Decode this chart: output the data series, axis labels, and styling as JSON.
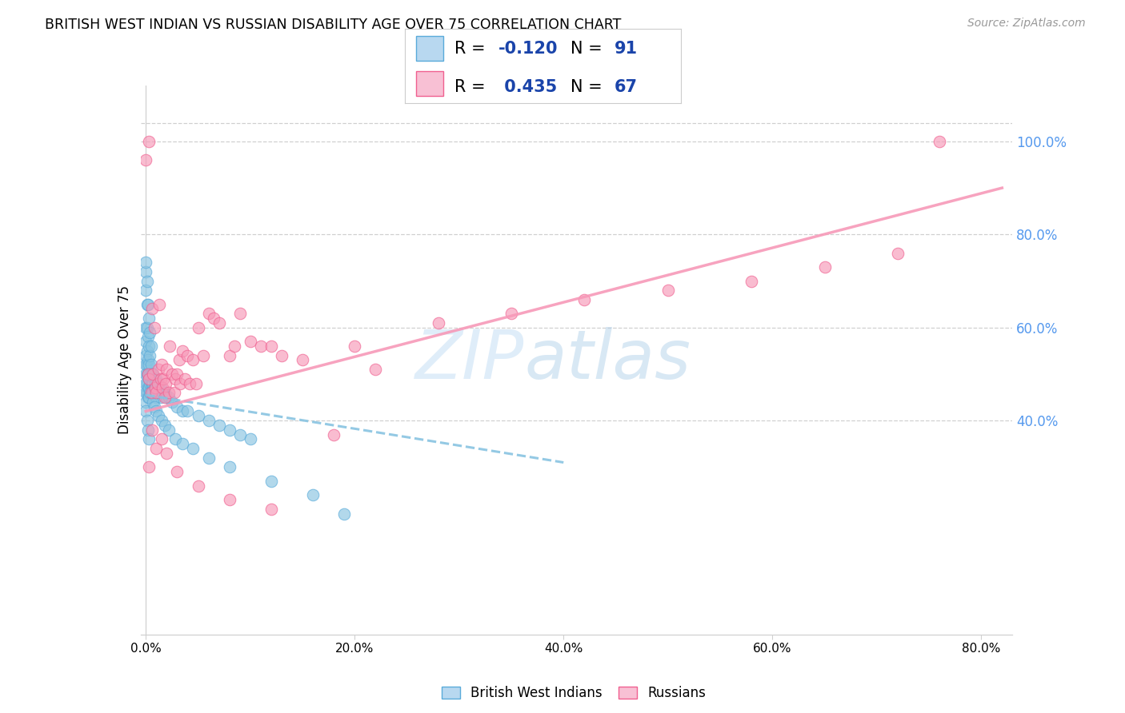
{
  "title": "BRITISH WEST INDIAN VS RUSSIAN DISABILITY AGE OVER 75 CORRELATION CHART",
  "source": "Source: ZipAtlas.com",
  "ylabel": "Disability Age Over 75",
  "watermark_zip": "ZIP",
  "watermark_atlas": "atlas",
  "bwi_color": "#89c4e1",
  "bwi_edge": "#5aabda",
  "rus_color": "#f799b8",
  "rus_edge": "#f06090",
  "bwi_trend_color": "#89c4e1",
  "rus_trend_color": "#f799b8",
  "grid_color": "#d0d0d0",
  "background_color": "#ffffff",
  "right_tick_color": "#5599ee",
  "legend_patch_bwi": "#b8d8f0",
  "legend_patch_rus": "#f8c0d4",
  "bwi_R": -0.12,
  "bwi_N": 91,
  "rus_R": 0.435,
  "rus_N": 67,
  "xmin": -0.005,
  "xmax": 0.83,
  "ymin": -0.06,
  "ymax": 1.12,
  "x_ticks": [
    0.0,
    0.2,
    0.4,
    0.6,
    0.8
  ],
  "x_tick_labels": [
    "0.0%",
    "20.0%",
    "40.0%",
    "60.0%",
    "80.0%"
  ],
  "y_ticks_right": [
    0.4,
    0.6,
    0.8,
    1.0
  ],
  "y_tick_labels_right": [
    "40.0%",
    "60.0%",
    "80.0%",
    "100.0%"
  ],
  "bwi_trend_x": [
    0.0,
    0.4
  ],
  "bwi_trend_y": [
    0.455,
    0.31
  ],
  "rus_trend_x": [
    0.0,
    0.82
  ],
  "rus_trend_y": [
    0.42,
    0.9
  ],
  "bwi_points": {
    "x": [
      0.0,
      0.0,
      0.0,
      0.0,
      0.0,
      0.0,
      0.0,
      0.0,
      0.0,
      0.0,
      0.001,
      0.001,
      0.001,
      0.001,
      0.001,
      0.001,
      0.001,
      0.002,
      0.002,
      0.002,
      0.002,
      0.002,
      0.003,
      0.003,
      0.003,
      0.003,
      0.003,
      0.004,
      0.004,
      0.004,
      0.004,
      0.005,
      0.005,
      0.005,
      0.005,
      0.006,
      0.006,
      0.006,
      0.007,
      0.007,
      0.007,
      0.008,
      0.008,
      0.009,
      0.009,
      0.01,
      0.01,
      0.01,
      0.012,
      0.012,
      0.014,
      0.014,
      0.016,
      0.018,
      0.02,
      0.022,
      0.025,
      0.03,
      0.035,
      0.04,
      0.05,
      0.06,
      0.07,
      0.08,
      0.09,
      0.1,
      0.0,
      0.001,
      0.002,
      0.003,
      0.004,
      0.005,
      0.0,
      0.001,
      0.002,
      0.003,
      0.007,
      0.008,
      0.01,
      0.012,
      0.015,
      0.018,
      0.022,
      0.028,
      0.035,
      0.045,
      0.06,
      0.08,
      0.12,
      0.16,
      0.19
    ],
    "y": [
      0.72,
      0.68,
      0.6,
      0.57,
      0.54,
      0.52,
      0.5,
      0.48,
      0.46,
      0.44,
      0.65,
      0.6,
      0.55,
      0.52,
      0.5,
      0.48,
      0.46,
      0.58,
      0.53,
      0.5,
      0.47,
      0.45,
      0.56,
      0.52,
      0.49,
      0.47,
      0.45,
      0.54,
      0.5,
      0.48,
      0.46,
      0.52,
      0.5,
      0.48,
      0.46,
      0.5,
      0.48,
      0.46,
      0.5,
      0.48,
      0.46,
      0.49,
      0.47,
      0.48,
      0.46,
      0.49,
      0.47,
      0.45,
      0.48,
      0.46,
      0.47,
      0.45,
      0.46,
      0.46,
      0.45,
      0.45,
      0.44,
      0.43,
      0.42,
      0.42,
      0.41,
      0.4,
      0.39,
      0.38,
      0.37,
      0.36,
      0.74,
      0.7,
      0.65,
      0.62,
      0.59,
      0.56,
      0.42,
      0.4,
      0.38,
      0.36,
      0.44,
      0.43,
      0.42,
      0.41,
      0.4,
      0.39,
      0.38,
      0.36,
      0.35,
      0.34,
      0.32,
      0.3,
      0.27,
      0.24,
      0.2
    ]
  },
  "rus_points": {
    "x": [
      0.003,
      0.0,
      0.002,
      0.003,
      0.005,
      0.006,
      0.007,
      0.008,
      0.009,
      0.01,
      0.011,
      0.012,
      0.013,
      0.014,
      0.015,
      0.016,
      0.017,
      0.018,
      0.019,
      0.02,
      0.022,
      0.023,
      0.025,
      0.027,
      0.028,
      0.03,
      0.032,
      0.033,
      0.035,
      0.037,
      0.04,
      0.042,
      0.045,
      0.048,
      0.05,
      0.055,
      0.06,
      0.065,
      0.07,
      0.08,
      0.085,
      0.09,
      0.1,
      0.11,
      0.12,
      0.13,
      0.15,
      0.18,
      0.22,
      0.28,
      0.35,
      0.42,
      0.5,
      0.58,
      0.65,
      0.72,
      0.76,
      0.003,
      0.006,
      0.01,
      0.015,
      0.02,
      0.03,
      0.05,
      0.08,
      0.12,
      0.2
    ],
    "y": [
      1.0,
      0.96,
      0.5,
      0.49,
      0.46,
      0.64,
      0.5,
      0.6,
      0.47,
      0.46,
      0.48,
      0.51,
      0.65,
      0.49,
      0.52,
      0.47,
      0.49,
      0.45,
      0.48,
      0.51,
      0.46,
      0.56,
      0.5,
      0.46,
      0.49,
      0.5,
      0.53,
      0.48,
      0.55,
      0.49,
      0.54,
      0.48,
      0.53,
      0.48,
      0.6,
      0.54,
      0.63,
      0.62,
      0.61,
      0.54,
      0.56,
      0.63,
      0.57,
      0.56,
      0.56,
      0.54,
      0.53,
      0.37,
      0.51,
      0.61,
      0.63,
      0.66,
      0.68,
      0.7,
      0.73,
      0.76,
      1.0,
      0.3,
      0.38,
      0.34,
      0.36,
      0.33,
      0.29,
      0.26,
      0.23,
      0.21,
      0.56
    ]
  }
}
